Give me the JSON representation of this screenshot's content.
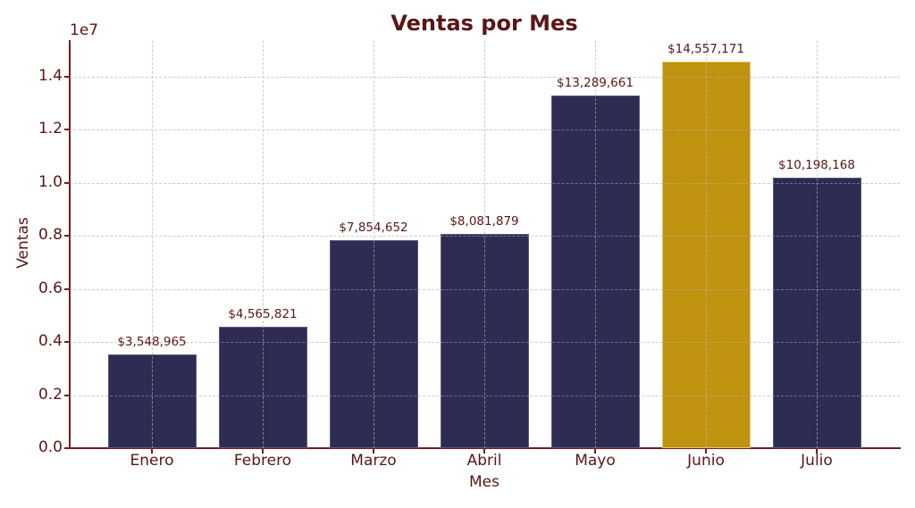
{
  "chart_data": {
    "type": "bar",
    "title": "Ventas por Mes",
    "xlabel": "Mes",
    "ylabel": "Ventas",
    "y_offset_label": "1e7",
    "categories": [
      "Enero",
      "Febrero",
      "Marzo",
      "Abril",
      "Mayo",
      "Junio",
      "Julio"
    ],
    "values": [
      3548965,
      4565821,
      7854652,
      8081879,
      13289661,
      14557171,
      10198168
    ],
    "value_labels": [
      "$3,548,965",
      "$4,565,821",
      "$7,854,652",
      "$8,081,879",
      "$13,289,661",
      "$14,557,171",
      "$10,198,168"
    ],
    "highlight_index": 5,
    "yticks": [
      0.0,
      0.2,
      0.4,
      0.6,
      0.8,
      1.0,
      1.2,
      1.4
    ],
    "ytick_labels": [
      "0.0",
      "0.2",
      "0.4",
      "0.6",
      "0.8",
      "1.0",
      "1.2",
      "1.4"
    ],
    "ylim": [
      0,
      15375000
    ],
    "grid": true,
    "legend": null
  },
  "colors": {
    "bar": "#2e2c52",
    "highlight": "#bf9210",
    "text": "#5a1616",
    "axis": "#6b1f1f",
    "grid": "#cfcfcf"
  }
}
